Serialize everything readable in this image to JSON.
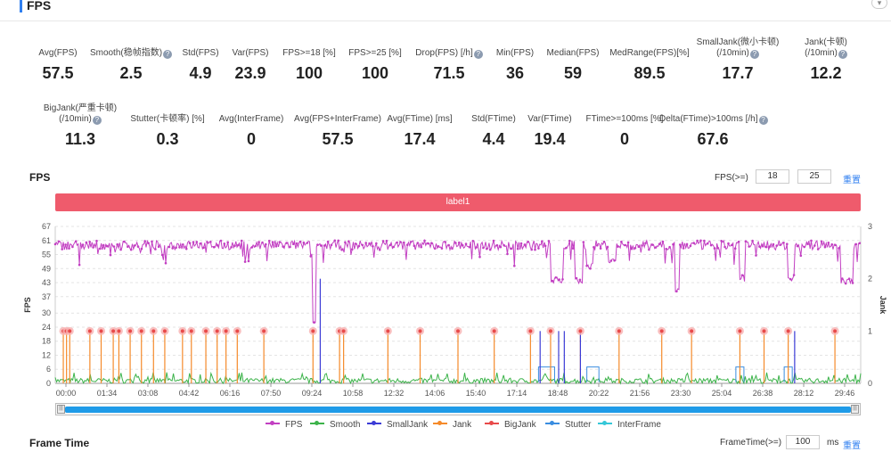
{
  "header": {
    "title": "FPS",
    "collapse_icon": "chevron-down-icon"
  },
  "metrics_row1": [
    {
      "label": "Avg(FPS)",
      "value": "57.5",
      "help": false
    },
    {
      "label": "Smooth(稳帧指数)",
      "value": "2.5",
      "help": true
    },
    {
      "label": "Std(FPS)",
      "value": "4.9",
      "help": false
    },
    {
      "label": "Var(FPS)",
      "value": "23.9",
      "help": false
    },
    {
      "label": "FPS>=18 [%]",
      "value": "100",
      "help": false
    },
    {
      "label": "FPS>=25 [%]",
      "value": "100",
      "help": false
    },
    {
      "label": "Drop(FPS) [/h]",
      "value": "71.5",
      "help": true
    },
    {
      "label": "Min(FPS)",
      "value": "36",
      "help": false
    },
    {
      "label": "Median(FPS)",
      "value": "59",
      "help": false
    },
    {
      "label": "MedRange(FPS)[%]",
      "value": "89.5",
      "help": false
    },
    {
      "label": "SmallJank(微小卡顿)",
      "label2": "(/10min)",
      "value": "17.7",
      "help": true
    },
    {
      "label": "Jank(卡顿)",
      "label2": "(/10min)",
      "value": "12.2",
      "help": true
    }
  ],
  "metrics_row2": [
    {
      "label": "BigJank(严重卡顿)",
      "label2": "(/10min)",
      "value": "11.3",
      "help": true
    },
    {
      "label": "Stutter(卡顿率) [%]",
      "value": "0.3",
      "help": false
    },
    {
      "label": "Avg(InterFrame)",
      "value": "0",
      "help": false
    },
    {
      "label": "Avg(FPS+InterFrame)",
      "value": "57.5",
      "help": false
    },
    {
      "label": "Avg(FTime) [ms]",
      "value": "17.4",
      "help": false
    },
    {
      "label": "Std(FTime)",
      "value": "4.4",
      "help": false
    },
    {
      "label": "Var(FTime)",
      "value": "19.4",
      "help": false
    },
    {
      "label": "FTime>=100ms [%]",
      "value": "0",
      "help": false
    },
    {
      "label": "Delta(FTime)>100ms [/h]",
      "value": "67.6",
      "help": true
    }
  ],
  "fps_section": {
    "title": "FPS",
    "threshold_label": "FPS(>=)",
    "threshold1": "18",
    "threshold2": "25",
    "reset_label": "重置",
    "label_bar": "label1"
  },
  "frame_section": {
    "title": "Frame Time",
    "threshold_label": "FrameTime(>=)",
    "threshold": "100",
    "unit": "ms",
    "reset_label": "重置"
  },
  "colors": {
    "fps": "#c23fc2",
    "smooth": "#3cb34a",
    "smalljank": "#3b3bd6",
    "jank": "#f58a2a",
    "bigjank": "#e84a4a",
    "stutter": "#3a8de0",
    "interframe": "#35c7d8"
  },
  "chart_data": {
    "type": "line",
    "ylabel": "FPS",
    "y2label": "Jank",
    "yticks": [
      0,
      6,
      12,
      18,
      24,
      30,
      37,
      43,
      49,
      55,
      61,
      67
    ],
    "y2ticks": [
      0,
      1,
      2,
      3
    ],
    "ylim": [
      0,
      67
    ],
    "y2lim": [
      0,
      3
    ],
    "xticks": [
      "00:00",
      "01:34",
      "03:08",
      "04:42",
      "06:16",
      "07:50",
      "09:24",
      "10:58",
      "12:32",
      "14:06",
      "15:40",
      "17:14",
      "18:48",
      "20:22",
      "21:56",
      "23:30",
      "25:04",
      "26:38",
      "28:12",
      "29:46"
    ],
    "fps_baseline": 59,
    "fps_dips": [
      {
        "x": 0.615,
        "x2": 0.63,
        "y": 44
      },
      {
        "x": 0.645,
        "x2": 0.655,
        "y": 44
      },
      {
        "x": 0.66,
        "x2": 0.668,
        "y": 50
      },
      {
        "x": 0.686,
        "x2": 0.696,
        "y": 53
      },
      {
        "x": 0.77,
        "x2": 0.775,
        "y": 40
      },
      {
        "x": 0.85,
        "x2": 0.856,
        "y": 45
      },
      {
        "x": 0.91,
        "x2": 0.918,
        "y": 45
      },
      {
        "x": 0.975,
        "x2": 0.99,
        "y": 44
      }
    ],
    "bigjank_x": [
      0.01,
      0.014,
      0.018,
      0.043,
      0.057,
      0.072,
      0.079,
      0.093,
      0.107,
      0.122,
      0.136,
      0.158,
      0.169,
      0.187,
      0.201,
      0.212,
      0.226,
      0.259,
      0.32,
      0.353,
      0.358,
      0.413,
      0.453,
      0.5,
      0.545,
      0.59,
      0.615,
      0.652,
      0.7,
      0.753,
      0.79,
      0.85,
      0.88,
      0.91,
      0.968
    ],
    "smalljank_x": [
      0.329,
      0.602,
      0.625,
      0.632,
      0.652,
      0.918
    ],
    "legend": [
      "FPS",
      "Smooth",
      "SmallJank",
      "Jank",
      "BigJank",
      "Stutter",
      "InterFrame"
    ]
  }
}
